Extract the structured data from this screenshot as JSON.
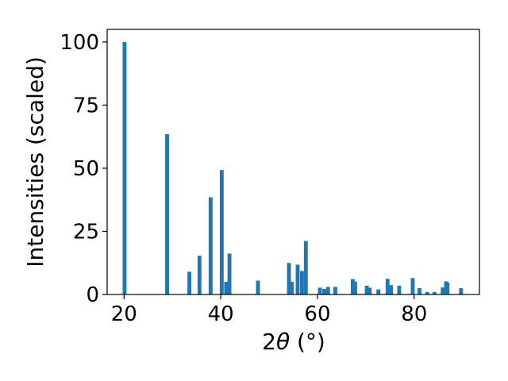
{
  "chart_data": {
    "type": "bar",
    "xlabel_prefix": "2",
    "xlabel_symbol": "θ",
    "xlabel_unit": " (°)",
    "ylabel": "Intensities (scaled)",
    "xlim": [
      16.5,
      93.5
    ],
    "ylim": [
      0,
      105
    ],
    "x_ticks": [
      20,
      40,
      60,
      80
    ],
    "y_ticks": [
      0,
      25,
      50,
      75,
      100
    ],
    "bar_color": "#1f77b4",
    "bar_width_deg": 0.8,
    "grid": false,
    "x": [
      20.1,
      28.9,
      33.5,
      35.6,
      37.9,
      40.2,
      41.1,
      41.8,
      47.7,
      54.1,
      54.7,
      55.9,
      56.8,
      57.6,
      60.5,
      61.4,
      62.2,
      63.7,
      67.3,
      67.8,
      70.2,
      70.8,
      72.6,
      74.5,
      75.2,
      76.9,
      79.7,
      81.1,
      82.7,
      84.2,
      85.9,
      86.6,
      86.9,
      89.7
    ],
    "values": [
      100,
      63.5,
      9,
      15.3,
      38.5,
      49.3,
      5,
      16.2,
      5.5,
      12.5,
      5,
      11.8,
      9.3,
      21.2,
      2.7,
      2.2,
      3,
      3,
      6.1,
      5.1,
      3.5,
      2.7,
      2,
      6.2,
      3.7,
      3.5,
      6.5,
      2.5,
      1,
      1,
      2.8,
      5.2,
      4.7,
      2.5
    ]
  }
}
